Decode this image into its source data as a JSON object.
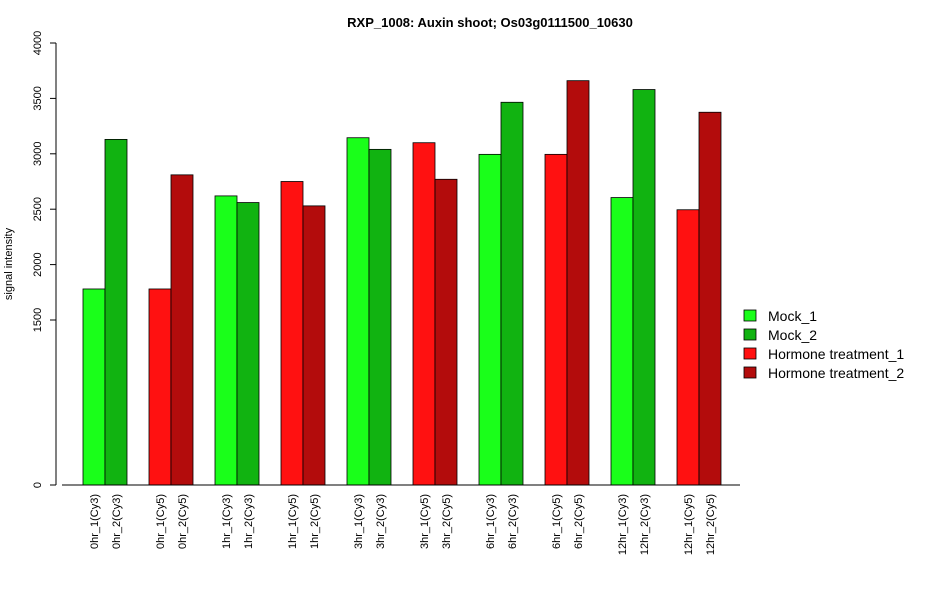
{
  "chart_data": {
    "type": "bar",
    "title": "RXP_1008: Auxin shoot; Os03g0111500_10630",
    "xlabel": "",
    "ylabel": "signal intensity",
    "y_ticks": [
      0,
      1500,
      2000,
      2500,
      3000,
      3500,
      4000
    ],
    "y_tick_labels": [
      "0",
      "1500",
      "2000",
      "2500",
      "3000",
      "3500",
      "4000"
    ],
    "y_axis_break": "axis runs from 0 at the baseline to 4000 at the top; the 0–1500 span is compressed (the 0 tick sits well below 1500)",
    "categories": [
      "0hr_1(Cy3)",
      "0hr_2(Cy3)",
      "0hr_1(Cy5)",
      "0hr_2(Cy5)",
      "1hr_1(Cy3)",
      "1hr_2(Cy3)",
      "1hr_1(Cy5)",
      "1hr_2(Cy5)",
      "3hr_1(Cy3)",
      "3hr_2(Cy3)",
      "3hr_1(Cy5)",
      "3hr_2(Cy5)",
      "6hr_1(Cy3)",
      "6hr_2(Cy3)",
      "6hr_1(Cy5)",
      "6hr_2(Cy5)",
      "12hr_1(Cy3)",
      "12hr_2(Cy3)",
      "12hr_1(Cy5)",
      "12hr_2(Cy5)"
    ],
    "values": [
      1780,
      3130,
      1780,
      2810,
      2620,
      2560,
      2750,
      2530,
      3145,
      3040,
      3100,
      2770,
      2995,
      3465,
      2995,
      3660,
      2605,
      3580,
      2495,
      3375
    ],
    "bar_series": [
      "Mock_1",
      "Mock_2",
      "Hormone treatment_1",
      "Hormone treatment_2",
      "Mock_1",
      "Mock_2",
      "Hormone treatment_1",
      "Hormone treatment_2",
      "Mock_1",
      "Mock_2",
      "Hormone treatment_1",
      "Hormone treatment_2",
      "Mock_1",
      "Mock_2",
      "Hormone treatment_1",
      "Hormone treatment_2",
      "Mock_1",
      "Mock_2",
      "Hormone treatment_1",
      "Hormone treatment_2"
    ],
    "ylim": [
      0,
      4000
    ],
    "grid": false,
    "legend": {
      "placement": "right",
      "entries": [
        {
          "name": "Mock_1",
          "color": "#1aff1a"
        },
        {
          "name": "Mock_2",
          "color": "#11b311"
        },
        {
          "name": "Hormone treatment_1",
          "color": "#ff1111"
        },
        {
          "name": "Hormone treatment_2",
          "color": "#b30c0c"
        }
      ]
    }
  }
}
